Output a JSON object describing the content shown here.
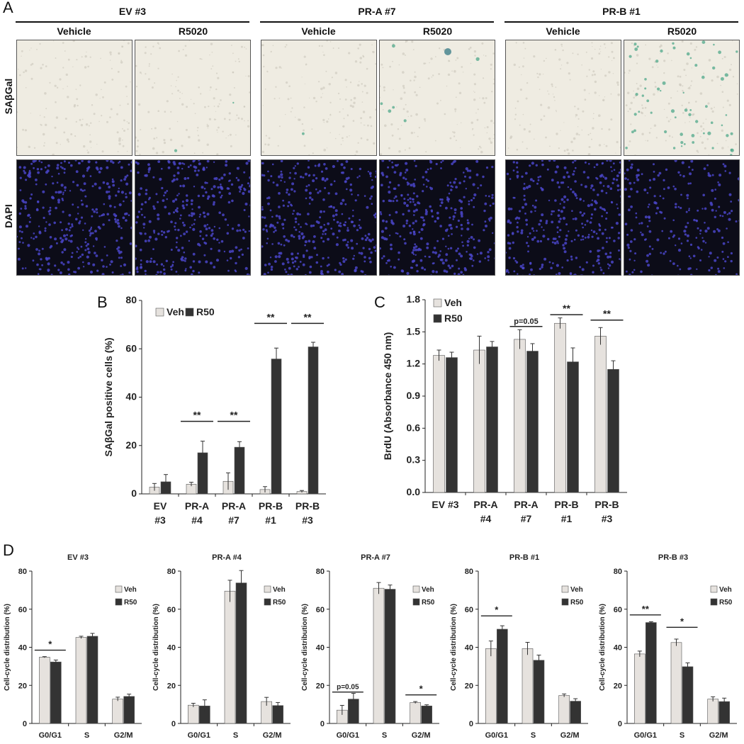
{
  "panel_a": {
    "letter": "A",
    "groups": [
      "EV #3",
      "PR-A #7",
      "PR-B #1"
    ],
    "conditions": [
      "Vehicle",
      "R5020"
    ],
    "rows": [
      "SAβGal",
      "DAPI"
    ]
  },
  "colors": {
    "veh": "#e6e2de",
    "r50": "#333333",
    "bright_bg": "#efece2",
    "dapi_bg": "#0c0c18",
    "dapi_dot": "#4a45c8",
    "stain": "#4fa88a"
  },
  "chart_data": [
    {
      "id": "B",
      "letter": "B",
      "type": "bar",
      "title": "",
      "ylabel": "SAβGal positive cells (%)",
      "xlabel": "",
      "ylim": [
        0,
        80
      ],
      "yticks": [
        0,
        20,
        40,
        60,
        80
      ],
      "categories": [
        [
          "EV",
          "#3"
        ],
        [
          "PR-A",
          "#4"
        ],
        [
          "PR-A",
          "#7"
        ],
        [
          "PR-B",
          "#1"
        ],
        [
          "PR-B",
          "#3"
        ]
      ],
      "series": [
        {
          "name": "Veh",
          "values": [
            2.8,
            4.0,
            5.2,
            1.8,
            1.0
          ],
          "errors": [
            1.5,
            0.8,
            3.5,
            1.2,
            0.4
          ]
        },
        {
          "name": "R50",
          "values": [
            5.0,
            17.0,
            19.3,
            55.8,
            60.8
          ],
          "errors": [
            3.0,
            4.8,
            2.3,
            4.5,
            1.9
          ]
        }
      ],
      "annotations": [
        {
          "category": 1,
          "text": "**",
          "y": 30
        },
        {
          "category": 2,
          "text": "**",
          "y": 30
        },
        {
          "category": 3,
          "text": "**",
          "y": 70.5
        },
        {
          "category": 4,
          "text": "**",
          "y": 70.5
        }
      ],
      "legend": "top-left",
      "grid": false
    },
    {
      "id": "C",
      "letter": "C",
      "type": "bar",
      "title": "",
      "ylabel": "BrdU (Absorbance 450 nm)",
      "xlabel": "",
      "ylim": [
        0,
        1.8
      ],
      "yticks": [
        0.0,
        0.3,
        0.6,
        0.9,
        1.2,
        1.5,
        1.8
      ],
      "categories": [
        [
          "EV #3"
        ],
        [
          "PR-A",
          "#4"
        ],
        [
          "PR-A",
          "#7"
        ],
        [
          "PR-B",
          "#1"
        ],
        [
          "PR-B",
          "#3"
        ]
      ],
      "series": [
        {
          "name": "Veh",
          "values": [
            1.28,
            1.33,
            1.43,
            1.58,
            1.46
          ],
          "errors": [
            0.05,
            0.13,
            0.09,
            0.05,
            0.08
          ]
        },
        {
          "name": "R50",
          "values": [
            1.26,
            1.36,
            1.32,
            1.22,
            1.15
          ],
          "errors": [
            0.05,
            0.05,
            0.07,
            0.13,
            0.08
          ]
        }
      ],
      "annotations": [
        {
          "category": 2,
          "text": "p=0.05",
          "y": 1.55
        },
        {
          "category": 3,
          "text": "**",
          "y": 1.66
        },
        {
          "category": 4,
          "text": "**",
          "y": 1.61
        }
      ],
      "legend": "top-left",
      "grid": false
    }
  ],
  "panel_d": {
    "letter": "D",
    "ylabel": "Cell-cycle distribution (%)",
    "categories": [
      "G0/G1",
      "S",
      "G2/M"
    ],
    "ylim": [
      0,
      80
    ],
    "yticks": [
      0,
      20,
      40,
      60,
      80
    ],
    "legend": [
      "Veh",
      "R50"
    ],
    "charts": [
      {
        "title": "EV #3",
        "veh": [
          34.8,
          45.2,
          12.8
        ],
        "r50": [
          32.3,
          45.8,
          14.2
        ],
        "veh_err": [
          0.3,
          0.6,
          1.0
        ],
        "r50_err": [
          1.0,
          1.5,
          1.2
        ],
        "annotations": [
          {
            "category": 0,
            "text": "*",
            "y": 38.5
          }
        ]
      },
      {
        "title": "PR-A #4",
        "veh": [
          9.6,
          69.5,
          11.5
        ],
        "r50": [
          9.2,
          73.8,
          9.4
        ],
        "veh_err": [
          1.0,
          5.7,
          2.2
        ],
        "r50_err": [
          3.2,
          6.5,
          1.6
        ],
        "annotations": []
      },
      {
        "title": "PR-A #7",
        "veh": [
          7.0,
          71.0,
          11.0
        ],
        "r50": [
          12.8,
          70.5,
          9.2
        ],
        "veh_err": [
          2.5,
          3.0,
          0.5
        ],
        "r50_err": [
          3.0,
          2.2,
          0.6
        ],
        "annotations": [
          {
            "category": 0,
            "text": "p=0.05",
            "y": 16.5
          },
          {
            "category": 2,
            "text": "*",
            "y": 15
          }
        ]
      },
      {
        "title": "PR-B #1",
        "veh": [
          39.3,
          39.3,
          14.7
        ],
        "r50": [
          49.5,
          33.2,
          11.7
        ],
        "veh_err": [
          4.0,
          3.3,
          0.8
        ],
        "r50_err": [
          1.8,
          2.7,
          1.3
        ],
        "annotations": [
          {
            "category": 0,
            "text": "*",
            "y": 56.5
          }
        ]
      },
      {
        "title": "PR-B #3",
        "veh": [
          36.5,
          42.5,
          12.8
        ],
        "r50": [
          53.0,
          29.8,
          11.5
        ],
        "veh_err": [
          1.5,
          1.8,
          1.2
        ],
        "r50_err": [
          0.4,
          2.0,
          1.8
        ],
        "annotations": [
          {
            "category": 0,
            "text": "**",
            "y": 57
          },
          {
            "category": 1,
            "text": "*",
            "y": 50.5
          }
        ]
      }
    ]
  }
}
